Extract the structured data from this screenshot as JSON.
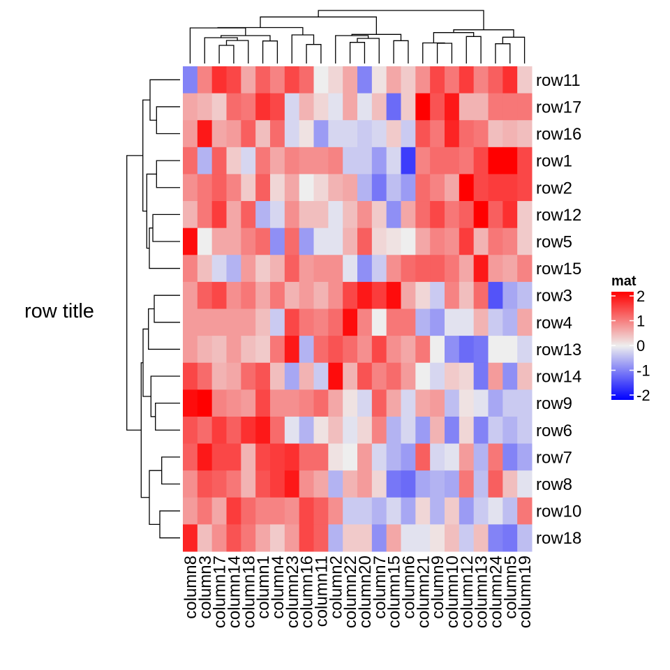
{
  "chart_data": {
    "type": "heatmap",
    "row_title": "row title",
    "rows": [
      "row11",
      "row17",
      "row16",
      "row1",
      "row2",
      "row12",
      "row5",
      "row15",
      "row3",
      "row4",
      "row13",
      "row14",
      "row9",
      "row6",
      "row7",
      "row8",
      "row10",
      "row18"
    ],
    "columns": [
      "column8",
      "column3",
      "column17",
      "column14",
      "column18",
      "column1",
      "column4",
      "column23",
      "column16",
      "column11",
      "column2",
      "column22",
      "column20",
      "column7",
      "column15",
      "column6",
      "column21",
      "column9",
      "column10",
      "column12",
      "column13",
      "column24",
      "column5",
      "column19"
    ],
    "values": [
      [
        -0.9,
        0.9,
        1.6,
        1.4,
        0.6,
        1.2,
        0.9,
        1.4,
        1.1,
        0.0,
        0.2,
        0.6,
        -0.9,
        0.1,
        0.6,
        0.3,
        0.8,
        1.4,
        1.0,
        1.5,
        0.9,
        1.2,
        1.6,
        0.3
      ],
      [
        0.6,
        0.5,
        0.3,
        1.1,
        1.0,
        1.6,
        1.4,
        -0.2,
        0.5,
        0.2,
        -0.1,
        0.6,
        -0.1,
        0.4,
        -1.1,
        0.3,
        2.0,
        1.3,
        1.8,
        0.5,
        0.5,
        1.0,
        1.0,
        1.0
      ],
      [
        0.7,
        1.8,
        0.6,
        0.7,
        1.2,
        0.4,
        1.1,
        -0.2,
        0.1,
        -0.7,
        -0.2,
        -0.2,
        -0.3,
        -0.2,
        0.3,
        -0.3,
        1.3,
        1.0,
        1.7,
        1.1,
        1.0,
        0.4,
        0.5,
        0.4
      ],
      [
        1.1,
        -0.5,
        1.2,
        0.3,
        -0.2,
        1.0,
        0.6,
        0.9,
        0.8,
        0.8,
        0.9,
        -0.3,
        -0.3,
        -0.7,
        -0.2,
        -1.5,
        0.9,
        1.1,
        1.1,
        1.0,
        1.4,
        2.0,
        2.0,
        1.4
      ],
      [
        0.8,
        1.0,
        1.2,
        0.9,
        0.3,
        1.2,
        0.2,
        0.6,
        0.0,
        0.2,
        0.5,
        0.6,
        -0.5,
        -1.0,
        -0.4,
        -0.7,
        1.1,
        0.9,
        0.6,
        2.0,
        1.4,
        1.5,
        1.5,
        1.4
      ],
      [
        0.5,
        1.0,
        1.5,
        0.6,
        1.2,
        -0.5,
        -0.2,
        0.8,
        0.4,
        0.4,
        -0.1,
        0.4,
        0.8,
        0.3,
        -0.8,
        0.6,
        1.1,
        1.4,
        1.0,
        1.2,
        2.0,
        1.2,
        1.6,
        0.3
      ],
      [
        1.9,
        0.0,
        0.6,
        0.6,
        0.9,
        1.1,
        -0.8,
        1.1,
        -0.7,
        -0.1,
        -0.1,
        0.5,
        1.2,
        0.2,
        0.1,
        0.0,
        0.6,
        0.9,
        0.8,
        1.5,
        0.5,
        1.0,
        0.9,
        0.3
      ],
      [
        0.9,
        0.4,
        -0.2,
        -0.5,
        0.7,
        0.3,
        0.5,
        1.2,
        0.7,
        0.8,
        0.8,
        -0.1,
        -0.8,
        -0.3,
        0.8,
        1.1,
        1.2,
        1.2,
        1.0,
        0.6,
        1.8,
        0.7,
        0.6,
        0.9
      ],
      [
        0.7,
        1.2,
        1.4,
        0.8,
        1.0,
        0.6,
        1.0,
        0.5,
        0.7,
        0.5,
        0.8,
        1.4,
        1.8,
        1.5,
        1.9,
        0.6,
        0.2,
        -0.3,
        0.9,
        0.4,
        1.1,
        -1.3,
        -0.6,
        -0.4
      ],
      [
        0.7,
        0.7,
        0.7,
        0.7,
        0.7,
        0.4,
        -0.3,
        1.4,
        1.0,
        0.9,
        1.1,
        1.9,
        0.9,
        0.0,
        1.0,
        1.0,
        -0.5,
        -0.7,
        -0.1,
        -0.1,
        0.5,
        -0.3,
        -0.5,
        0.6
      ],
      [
        0.7,
        0.5,
        0.4,
        0.7,
        0.4,
        0.3,
        1.0,
        1.8,
        -0.5,
        1.1,
        1.3,
        1.1,
        0.8,
        1.4,
        0.8,
        0.6,
        1.0,
        0.0,
        -0.8,
        -1.1,
        -1.0,
        0.0,
        0.0,
        -0.2
      ],
      [
        1.4,
        1.1,
        0.5,
        0.6,
        1.1,
        1.3,
        0.4,
        -0.6,
        0.5,
        -0.3,
        1.9,
        0.5,
        1.3,
        0.9,
        1.1,
        0.7,
        0.0,
        -0.2,
        0.3,
        0.2,
        -1.0,
        0.7,
        -0.8,
        0.4
      ],
      [
        1.9,
        2.0,
        0.9,
        0.8,
        0.7,
        1.4,
        0.8,
        0.8,
        0.9,
        1.1,
        0.6,
        0.1,
        -0.2,
        1.2,
        0.6,
        -0.2,
        0.6,
        0.7,
        -0.4,
        0.1,
        -0.1,
        -0.6,
        -0.3,
        -0.3
      ],
      [
        1.3,
        1.1,
        1.5,
        1.2,
        1.6,
        1.8,
        1.1,
        -0.1,
        -0.5,
        0.1,
        0.4,
        -0.1,
        0.2,
        0.9,
        -0.5,
        -0.2,
        -0.7,
        0.5,
        -0.9,
        0.2,
        -0.9,
        -0.3,
        -0.5,
        -0.3
      ],
      [
        1.2,
        1.8,
        1.4,
        1.4,
        0.5,
        1.4,
        1.5,
        1.6,
        1.1,
        1.1,
        0.1,
        0.0,
        0.7,
        -0.2,
        -0.5,
        -0.7,
        1.2,
        -0.2,
        -0.1,
        0.7,
        -0.5,
        1.0,
        -0.9,
        -0.6
      ],
      [
        0.8,
        1.3,
        1.2,
        1.0,
        0.5,
        1.3,
        1.5,
        1.8,
        0.8,
        0.6,
        -0.5,
        0.5,
        0.7,
        0.2,
        -1.0,
        -1.1,
        -0.6,
        -0.5,
        -0.6,
        1.0,
        -0.4,
        1.2,
        0.4,
        -0.1
      ],
      [
        0.7,
        1.0,
        0.6,
        1.5,
        1.1,
        0.9,
        0.9,
        0.8,
        1.4,
        1.2,
        0.8,
        -0.3,
        -0.3,
        -0.5,
        -0.2,
        -0.6,
        0.2,
        -0.5,
        0.3,
        -0.7,
        -0.3,
        -0.1,
        -0.4,
        1.0
      ],
      [
        1.7,
        0.4,
        0.8,
        1.3,
        1.0,
        0.6,
        0.3,
        0.7,
        1.4,
        1.2,
        -0.5,
        0.3,
        0.3,
        -0.8,
        0.6,
        -0.1,
        -0.1,
        0.1,
        0.4,
        -0.3,
        0.4,
        -0.9,
        -1.0,
        -0.4
      ]
    ],
    "color_scale": {
      "min": -2,
      "mid": 0,
      "max": 2,
      "low_color": "#0000FF",
      "mid_color": "#EEEEEE",
      "high_color": "#FF0000"
    },
    "legend": {
      "title": "mat",
      "ticks": [
        "2",
        "1",
        "0",
        "-1",
        "-2"
      ],
      "tick_values": [
        2,
        1,
        0,
        -1,
        -2
      ],
      "placement": "right"
    }
  }
}
